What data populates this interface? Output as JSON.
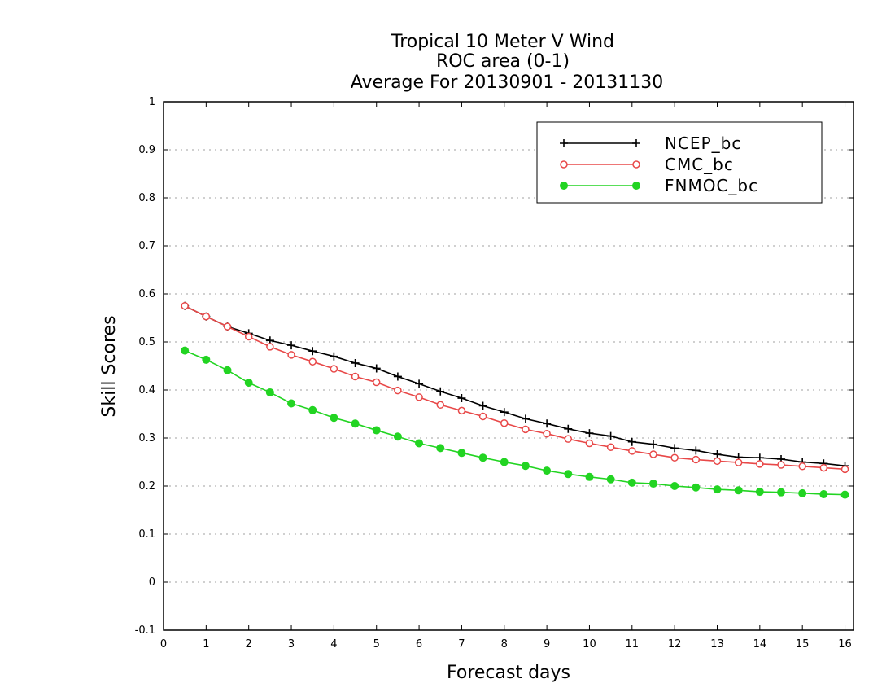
{
  "chart_data": {
    "type": "line",
    "title": [
      "Tropical 10 Meter V Wind",
      "ROC area (0-1)",
      "Average For 20130901 - 20131130"
    ],
    "xlabel": "Forecast days",
    "ylabel": "Skill Scores",
    "xlim": [
      0,
      16.2
    ],
    "ylim": [
      -0.1,
      1
    ],
    "xticks": [
      0,
      1,
      2,
      3,
      4,
      5,
      6,
      7,
      8,
      9,
      10,
      11,
      12,
      13,
      14,
      15,
      16
    ],
    "yticks": [
      -0.1,
      0,
      0.1,
      0.2,
      0.3,
      0.4,
      0.5,
      0.6,
      0.7,
      0.8,
      0.9,
      1
    ],
    "ytick_labels": [
      "-0.1",
      "0",
      "0.1",
      "0.2",
      "0.3",
      "0.4",
      "0.5",
      "0.6",
      "0.7",
      "0.8",
      "0.9",
      "1"
    ],
    "grid": "horizontal dotted",
    "legend_position": "top-right",
    "x": [
      0.5,
      1,
      1.5,
      2,
      2.5,
      3,
      3.5,
      4,
      4.5,
      5,
      5.5,
      6,
      6.5,
      7,
      7.5,
      8,
      8.5,
      9,
      9.5,
      10,
      10.5,
      11,
      11.5,
      12,
      12.5,
      13,
      13.5,
      14,
      14.5,
      15,
      15.5,
      16
    ],
    "series": [
      {
        "name": "NCEP_bc",
        "color": "#000000",
        "marker": "plus",
        "values": [
          0.575,
          0.553,
          0.532,
          0.518,
          0.503,
          0.493,
          0.481,
          0.47,
          0.456,
          0.445,
          0.428,
          0.413,
          0.397,
          0.383,
          0.367,
          0.354,
          0.34,
          0.33,
          0.319,
          0.31,
          0.304,
          0.292,
          0.287,
          0.279,
          0.274,
          0.266,
          0.26,
          0.259,
          0.256,
          0.25,
          0.247,
          0.242
        ]
      },
      {
        "name": "CMC_bc",
        "color": "#e84848",
        "marker": "open-circle",
        "values": [
          0.575,
          0.553,
          0.532,
          0.511,
          0.49,
          0.473,
          0.459,
          0.444,
          0.428,
          0.416,
          0.399,
          0.385,
          0.369,
          0.357,
          0.345,
          0.331,
          0.318,
          0.309,
          0.298,
          0.289,
          0.281,
          0.273,
          0.266,
          0.259,
          0.255,
          0.252,
          0.249,
          0.246,
          0.244,
          0.241,
          0.238,
          0.235
        ]
      },
      {
        "name": "FNMOC_bc",
        "color": "#22d422",
        "marker": "filled-circle",
        "values": [
          0.482,
          0.463,
          0.441,
          0.415,
          0.395,
          0.372,
          0.358,
          0.342,
          0.33,
          0.316,
          0.303,
          0.289,
          0.279,
          0.269,
          0.259,
          0.25,
          0.242,
          0.232,
          0.225,
          0.219,
          0.214,
          0.207,
          0.205,
          0.2,
          0.197,
          0.193,
          0.191,
          0.188,
          0.187,
          0.185,
          0.183,
          0.182
        ]
      }
    ]
  }
}
